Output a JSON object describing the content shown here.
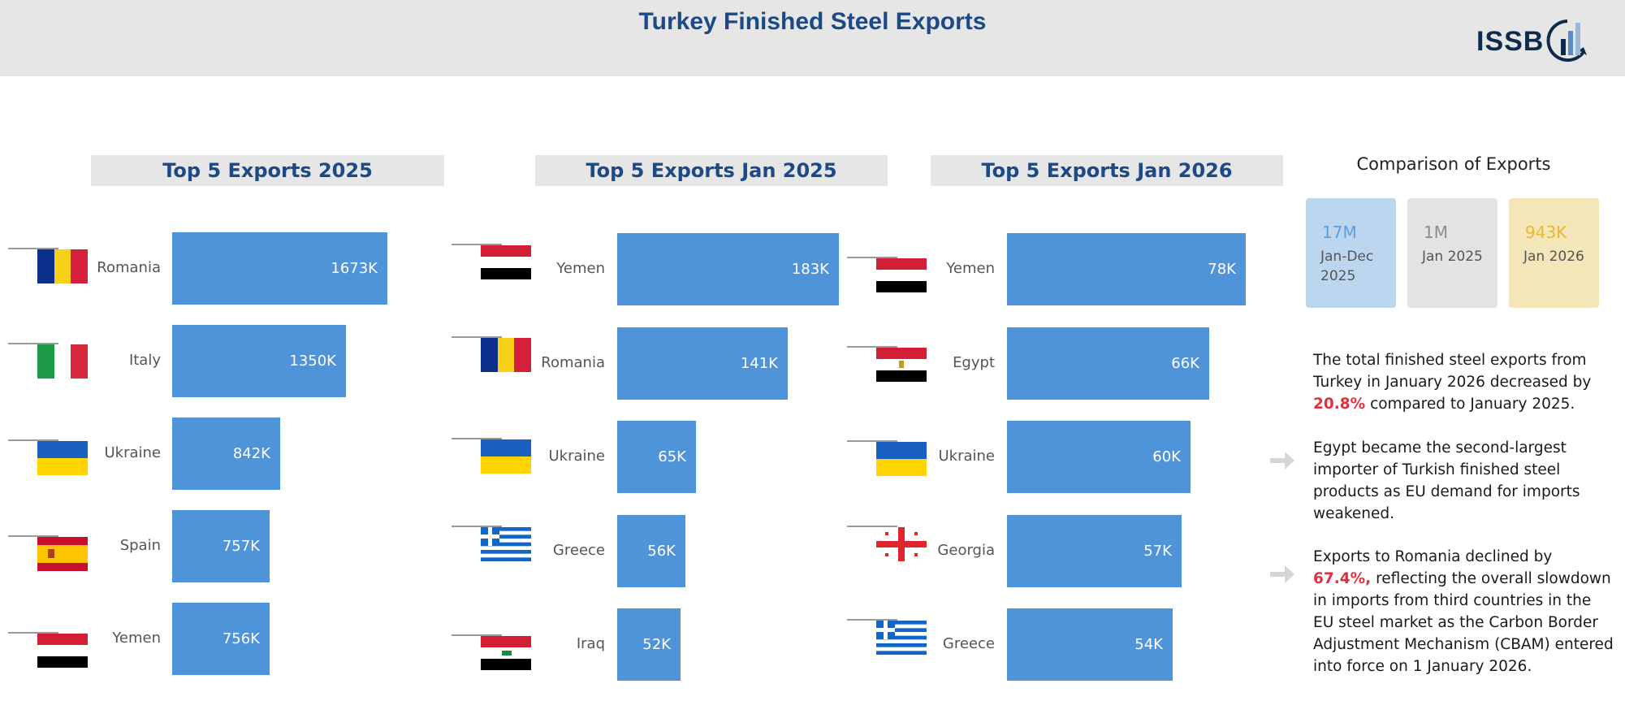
{
  "header": {
    "title": "Turkey Finished Steel Exports",
    "logo_text": "ISSB"
  },
  "chart_data": [
    {
      "type": "bar",
      "title": "Top 5 Exports 2025",
      "categories": [
        "Romania",
        "Italy",
        "Ukraine",
        "Spain",
        "Yemen"
      ],
      "values": [
        1673,
        1350,
        842,
        757,
        756
      ],
      "value_labels": [
        "1673K",
        "1350K",
        "842K",
        "757K",
        "756K"
      ],
      "orientation": "horizontal"
    },
    {
      "type": "bar",
      "title": "Top 5 Exports Jan 2025",
      "categories": [
        "Yemen",
        "Romania",
        "Ukraine",
        "Greece",
        "Iraq"
      ],
      "values": [
        183,
        141,
        65,
        56,
        52
      ],
      "value_labels": [
        "183K",
        "141K",
        "65K",
        "56K",
        "52K"
      ],
      "orientation": "horizontal"
    },
    {
      "type": "bar",
      "title": "Top 5 Exports Jan 2026",
      "categories": [
        "Yemen",
        "Egypt",
        "Ukraine",
        "Georgia",
        "Greece"
      ],
      "values": [
        78,
        66,
        60,
        57,
        54
      ],
      "value_labels": [
        "78K",
        "66K",
        "60K",
        "57K",
        "54K"
      ],
      "orientation": "horizontal"
    }
  ],
  "comparison": {
    "title": "Comparison of Exports",
    "cards": [
      {
        "value": "17M",
        "label": "Jan-Dec 2025",
        "bg": "#bcd6f0",
        "color": "#5aa0e0"
      },
      {
        "value": "1M",
        "label": "Jan 2025",
        "bg": "#e3e3e3",
        "color": "#8c8c8c"
      },
      {
        "value": "943K",
        "label": "Jan 2026",
        "bg": "#f3e6b9",
        "color": "#e8b92e"
      }
    ]
  },
  "notes": {
    "p1_before": "The total finished steel exports from Turkey in January 2026 decreased by ",
    "p1_highlight": "20.8%",
    "p1_after": " compared to January 2025.",
    "p2": "Egypt became the second-largest importer of Turkish finished steel products as EU demand for imports weakened.",
    "p3_before": "Exports to Romania declined by ",
    "p3_highlight": "67.4%,",
    "p3_after": " reflecting the overall slowdown in imports from third countries in the EU steel market as the Carbon Border Adjustment Mechanism (CBAM) entered into force on 1 January 2026."
  },
  "colors": {
    "bar": "#4f93d8",
    "title": "#1c4a86",
    "highlight": "#e0303f"
  }
}
